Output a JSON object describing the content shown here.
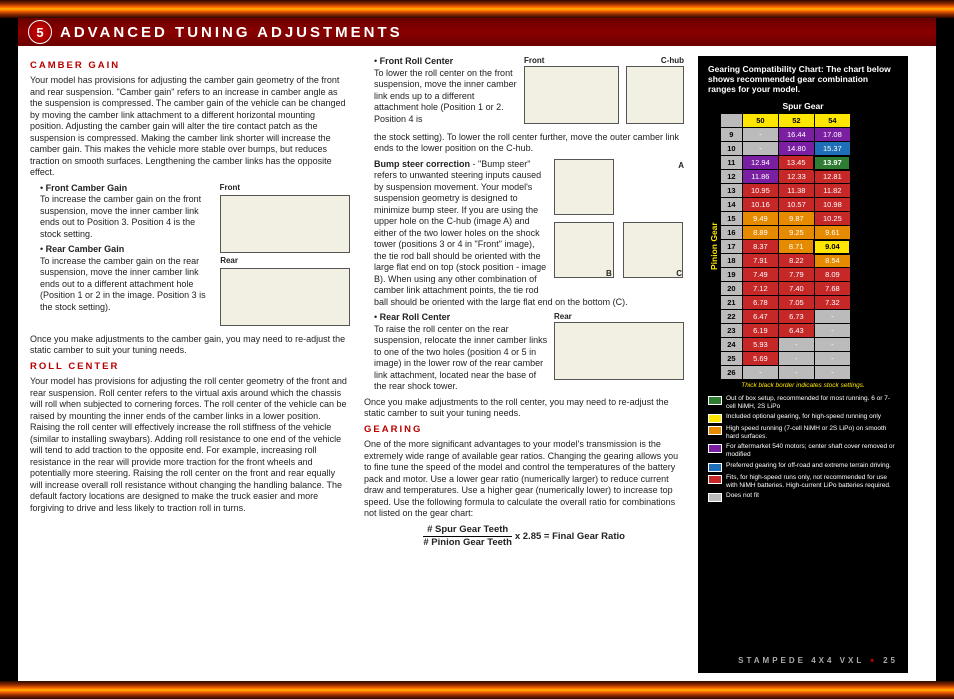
{
  "header": {
    "badge": "5",
    "title": "ADVANCED TUNING ADJUSTMENTS"
  },
  "col1": {
    "camber_gain_h": "CAMBER GAIN",
    "camber_gain_p": "Your model has provisions for adjusting the camber gain geometry of the front and rear suspension. \"Camber gain\" refers to an increase in camber angle as the suspension is compressed. The camber gain of the vehicle can be changed by moving the camber link attachment to a different horizontal mounting position. Adjusting the camber gain will alter the tire contact patch as the suspension is compressed. Making the camber link shorter will increase the camber gain. This makes the vehicle more stable over bumps, but reduces traction on smooth surfaces. Lengthening the camber links has the opposite effect.",
    "front_cg_h": "Front Camber Gain",
    "front_cg_p": "To increase the camber gain on the front suspension, move the inner camber link ends out to Position 3. Position 4 is the stock setting.",
    "rear_cg_h": "Rear Camber Gain",
    "rear_cg_p": "To increase the camber gain on the rear suspension, move the inner camber link ends out to a different attachment hole (Position 1 or 2 in the image. Position 3 is the stock setting).",
    "camber_note": "Once you make adjustments to the camber gain, you may need to re-adjust the static camber to suit your tuning needs.",
    "roll_center_h": "ROLL CENTER",
    "roll_center_p": "Your model has provisions for adjusting the roll center geometry of the front and rear suspension. Roll center refers to the virtual axis around which the chassis will roll when subjected to cornering forces. The roll center of the vehicle can be raised by mounting the inner ends of the camber links in a lower position. Raising the roll center will effectively increase the roll stiffness of the vehicle (similar to installing swaybars). Adding roll resistance to one end of the vehicle will tend to add traction to the opposite end. For example, increasing roll resistance in the rear will provide more traction for the front wheels and potentially more steering. Raising the roll center on the front and rear equally will increase overall roll resistance without changing the handling balance. The default factory locations are designed to make the truck easier and more forgiving to drive and less likely to traction roll in turns.",
    "labels": {
      "front": "Front",
      "rear": "Rear"
    }
  },
  "col2": {
    "frc_h": "Front Roll Center",
    "frc_p1": "To lower the roll center on the front suspension, move the inner camber link ends up to a different attachment hole (Position 1 or 2. Position 4 is",
    "frc_p2": "the stock setting). To lower the roll center further, move the outer camber link ends to the lower position on the C-hub.",
    "bump_h": "Bump steer correction",
    "bump_p": " - \"Bump steer\" refers to unwanted steering inputs caused by suspension movement. Your model's suspension geometry is designed to minimize bump steer. If you are using the upper hole on the C-hub (image A) and either of the two lower holes on the shock tower (positions 3 or 4 in \"Front\" image), the tie rod ball should be oriented with the large flat end on top (stock position - image B). When using any other combination of camber link attachment points, the tie rod ball should be oriented with the large flat end on the bottom (C).",
    "rrc_h": "Rear Roll Center",
    "rrc_p": "To raise the roll center on the rear suspension, relocate the inner camber links to one of the two holes (position 4 or 5 in image) in the lower row of the rear camber link attachment, located near the base of the rear shock tower.",
    "roll_note": "Once you make adjustments to the roll center, you may need to re-adjust the static camber to suit your tuning needs.",
    "gearing_h": "GEARING",
    "gearing_p": "One of the more significant advantages to your model's transmission is the extremely wide range of available gear ratios. Changing the gearing allows you to fine tune the speed of the model and control the temperatures of the battery pack and motor. Use a lower gear ratio (numerically larger) to reduce current draw and temperatures. Use a higher gear (numerically lower) to increase top speed. Use the following formula to calculate the overall ratio for combinations not listed on the gear chart:",
    "formula_top": "# Spur Gear Teeth",
    "formula_bot": "# Pinion Gear Teeth",
    "formula_rest": " x 2.85 = Final Gear Ratio",
    "labels": {
      "front": "Front",
      "chub": "C-hub",
      "rear": "Rear",
      "a": "A",
      "b": "B",
      "c": "C"
    }
  },
  "chart": {
    "title": "Gearing Compatibility Chart: The chart below shows recommended gear combination ranges for your model.",
    "spur_label": "Spur Gear",
    "pinion_label": "Pinion Gear",
    "spur_cols": [
      "50",
      "52",
      "54"
    ],
    "pinion_rows": [
      "9",
      "10",
      "11",
      "12",
      "13",
      "14",
      "15",
      "16",
      "17",
      "18",
      "19",
      "20",
      "21",
      "22",
      "23",
      "24",
      "25",
      "26"
    ],
    "cells": [
      [
        {
          "v": "-",
          "c": "#bbb"
        },
        {
          "v": "16.44",
          "c": "#7a1fa2"
        },
        {
          "v": "17.08",
          "c": "#7a1fa2"
        }
      ],
      [
        {
          "v": "-",
          "c": "#bbb"
        },
        {
          "v": "14.80",
          "c": "#7a1fa2"
        },
        {
          "v": "15.37",
          "c": "#1e6fb8"
        }
      ],
      [
        {
          "v": "12.94",
          "c": "#7a1fa2"
        },
        {
          "v": "13.45",
          "c": "#c62828"
        },
        {
          "v": "13.97",
          "c": "#2e7d32",
          "bold": true
        }
      ],
      [
        {
          "v": "11.86",
          "c": "#7a1fa2"
        },
        {
          "v": "12.33",
          "c": "#c62828"
        },
        {
          "v": "12.81",
          "c": "#c62828"
        }
      ],
      [
        {
          "v": "10.95",
          "c": "#c62828"
        },
        {
          "v": "11.38",
          "c": "#c62828"
        },
        {
          "v": "11.82",
          "c": "#c62828"
        }
      ],
      [
        {
          "v": "10.16",
          "c": "#c62828"
        },
        {
          "v": "10.57",
          "c": "#c62828"
        },
        {
          "v": "10.98",
          "c": "#c62828"
        }
      ],
      [
        {
          "v": "9.49",
          "c": "#e68a00"
        },
        {
          "v": "9.87",
          "c": "#e68a00"
        },
        {
          "v": "10.25",
          "c": "#c62828"
        }
      ],
      [
        {
          "v": "8.89",
          "c": "#e68a00"
        },
        {
          "v": "9.25",
          "c": "#e68a00"
        },
        {
          "v": "9.61",
          "c": "#e68a00"
        }
      ],
      [
        {
          "v": "8.37",
          "c": "#c62828"
        },
        {
          "v": "8.71",
          "c": "#e68a00"
        },
        {
          "v": "9.04",
          "c": "#ffe600",
          "fg": "#000",
          "bold": true
        }
      ],
      [
        {
          "v": "7.91",
          "c": "#c62828"
        },
        {
          "v": "8.22",
          "c": "#c62828"
        },
        {
          "v": "8.54",
          "c": "#e68a00"
        }
      ],
      [
        {
          "v": "7.49",
          "c": "#c62828"
        },
        {
          "v": "7.79",
          "c": "#c62828"
        },
        {
          "v": "8.09",
          "c": "#c62828"
        }
      ],
      [
        {
          "v": "7.12",
          "c": "#c62828"
        },
        {
          "v": "7.40",
          "c": "#c62828"
        },
        {
          "v": "7.68",
          "c": "#c62828"
        }
      ],
      [
        {
          "v": "6.78",
          "c": "#c62828"
        },
        {
          "v": "7.05",
          "c": "#c62828"
        },
        {
          "v": "7.32",
          "c": "#c62828"
        }
      ],
      [
        {
          "v": "6.47",
          "c": "#c62828"
        },
        {
          "v": "6.73",
          "c": "#c62828"
        },
        {
          "v": "-",
          "c": "#bbb"
        }
      ],
      [
        {
          "v": "6.19",
          "c": "#c62828"
        },
        {
          "v": "6.43",
          "c": "#c62828"
        },
        {
          "v": "-",
          "c": "#bbb"
        }
      ],
      [
        {
          "v": "5.93",
          "c": "#c62828"
        },
        {
          "v": "-",
          "c": "#bbb"
        },
        {
          "v": "-",
          "c": "#bbb"
        }
      ],
      [
        {
          "v": "5.69",
          "c": "#c62828"
        },
        {
          "v": "-",
          "c": "#bbb"
        },
        {
          "v": "-",
          "c": "#bbb"
        }
      ],
      [
        {
          "v": "-",
          "c": "#bbb"
        },
        {
          "v": "-",
          "c": "#bbb"
        },
        {
          "v": "-",
          "c": "#bbb"
        }
      ]
    ],
    "stock_note": "Thick black border indicates stock settings.",
    "legend": [
      {
        "c": "#2e7d32",
        "t": "Out of box setup, recommended for most running. 6 or 7-cell NiMH, 2S LiPo"
      },
      {
        "c": "#ffe600",
        "t": "Included optional gearing, for high-speed running only"
      },
      {
        "c": "#e68a00",
        "t": "High speed running (7-cell NiMH or 2S LiPo) on smooth hard surfaces."
      },
      {
        "c": "#7a1fa2",
        "t": "For aftermarket 540 motors; center shaft cover removed or modified"
      },
      {
        "c": "#1e6fb8",
        "t": "Preferred gearing for off-road and extreme terrain driving."
      },
      {
        "c": "#c62828",
        "t": "Fits, for high-speed runs only, not recommended for use with NiMH batteries. High-current LiPo batteries required."
      },
      {
        "c": "#bbbbbb",
        "t": "Does not fit"
      }
    ]
  },
  "footer": {
    "model": "STAMPEDE 4X4 VXL",
    "page": "25"
  }
}
